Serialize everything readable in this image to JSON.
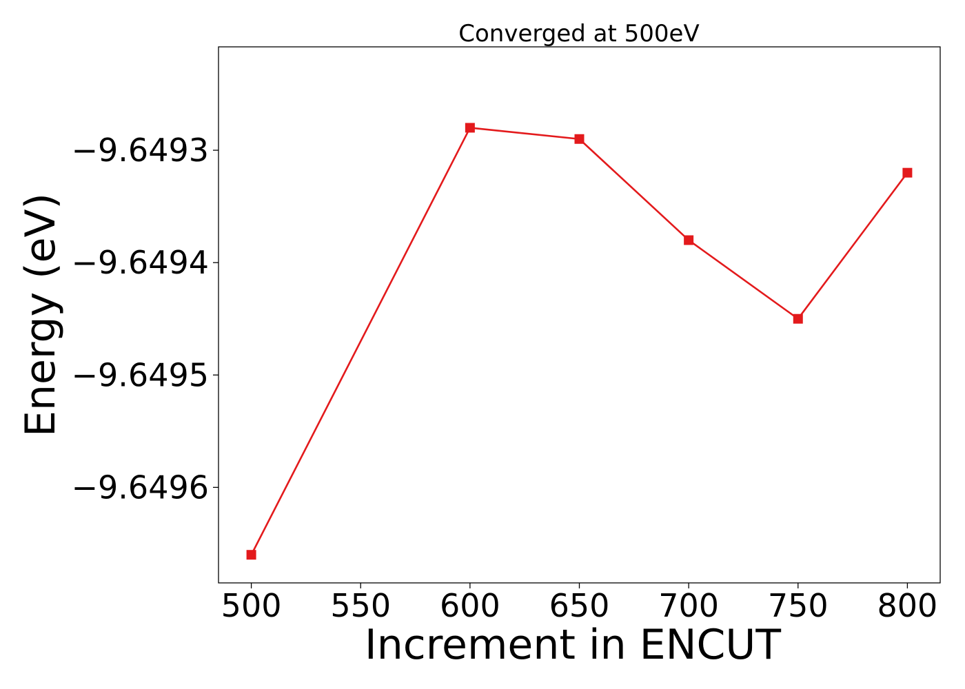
{
  "chart_data": {
    "type": "line",
    "title": "Converged at 500eV",
    "xlabel": "Increment in ENCUT",
    "ylabel": "Energy (eV)",
    "x": [
      500,
      600,
      650,
      700,
      750,
      800
    ],
    "series": [
      {
        "values": [
          -9.64966,
          -9.64928,
          -9.64929,
          -9.64938,
          -9.64945,
          -9.64932
        ],
        "color": "#e31a1c",
        "marker": "square"
      }
    ],
    "xticks": [
      500,
      550,
      600,
      650,
      700,
      750,
      800
    ],
    "xtick_labels": [
      "500",
      "550",
      "600",
      "650",
      "700",
      "750",
      "800"
    ],
    "yticks": [
      -9.6493,
      -9.6494,
      -9.6495,
      -9.6496
    ],
    "ytick_labels": [
      "−9.6493",
      "−9.6494",
      "−9.6495",
      "−9.6496"
    ],
    "xlim": [
      485,
      815
    ],
    "ylim": [
      -9.649685,
      -9.649208
    ],
    "grid": false,
    "legend": false
  }
}
